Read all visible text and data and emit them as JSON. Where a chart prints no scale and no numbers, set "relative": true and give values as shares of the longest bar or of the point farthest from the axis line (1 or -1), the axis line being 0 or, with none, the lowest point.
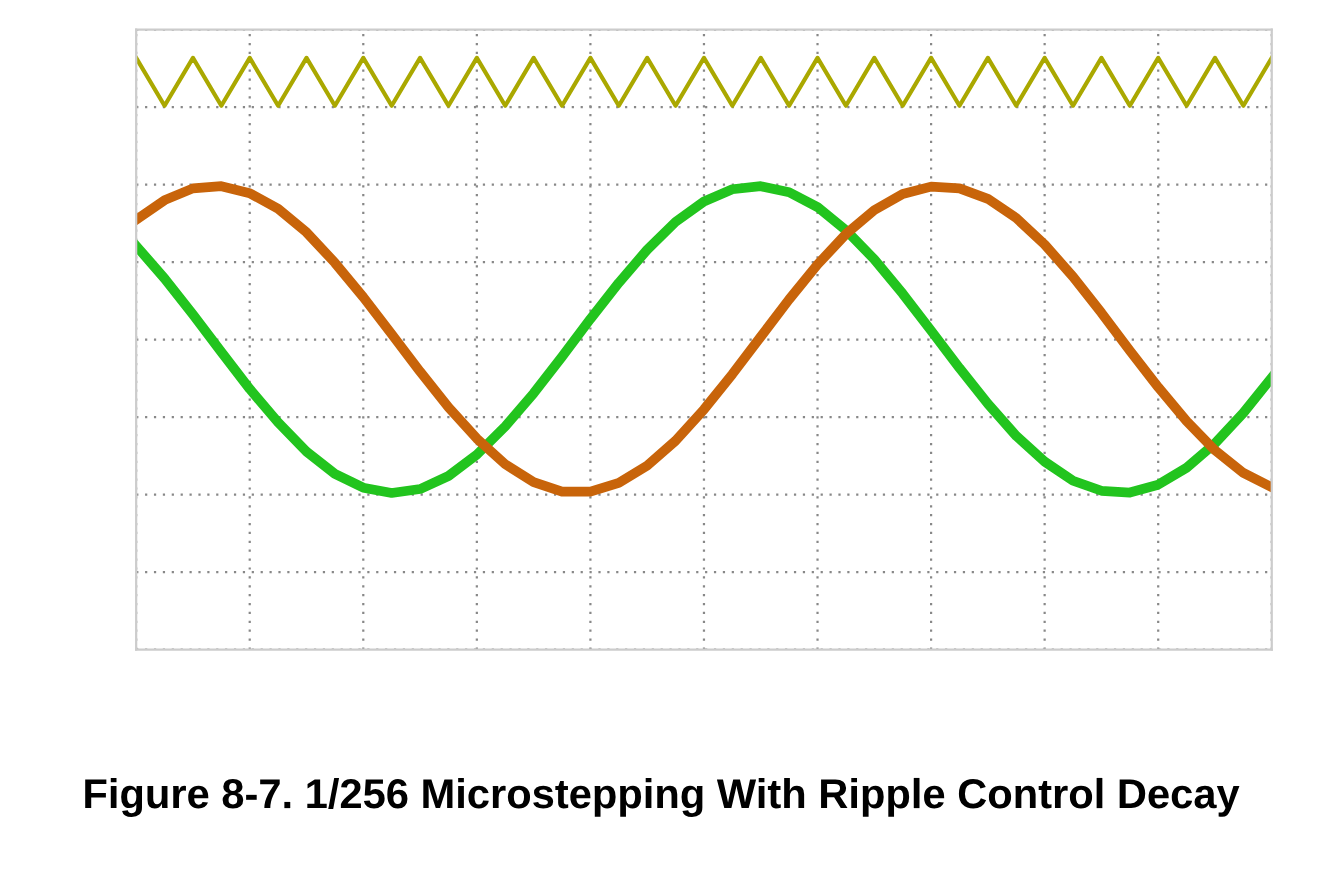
{
  "chart_data": {
    "type": "line",
    "relative": true,
    "grid": true,
    "legend": false,
    "title": "Figure 8-7. 1/256 Microstepping With Ripple Control Decay",
    "categories": [
      null,
      null,
      null,
      null,
      null,
      null,
      null,
      null,
      null,
      null,
      null,
      null,
      null,
      null,
      null,
      null,
      null,
      null,
      null,
      null,
      null,
      null,
      null,
      null,
      null,
      null,
      null,
      null,
      null,
      null,
      null,
      null,
      null,
      null,
      null,
      null,
      null,
      null,
      null,
      null,
      null
    ],
    "series": [
      {
        "color": "#aaa800",
        "values": [
          1,
          0.89,
          1,
          0.89,
          1,
          0.89,
          1,
          0.89,
          1,
          0.89,
          1,
          0.89,
          1,
          0.89,
          1,
          0.89,
          1,
          0.89,
          1,
          0.89,
          1,
          0.89,
          1,
          0.89,
          1,
          0.89,
          1,
          0.89,
          1,
          0.89,
          1,
          0.89,
          1,
          0.89,
          1,
          0.89,
          1,
          0.89,
          1,
          0.89,
          1
        ]
      },
      {
        "color": "#22c41e",
        "values": [
          0.568,
          0.493,
          0.41,
          0.324,
          0.239,
          0.162,
          0.095,
          0.044,
          0.012,
          0,
          0.009,
          0.039,
          0.088,
          0.153,
          0.229,
          0.313,
          0.4,
          0.483,
          0.559,
          0.623,
          0.67,
          0.698,
          0.705,
          0.691,
          0.657,
          0.604,
          0.537,
          0.458,
          0.373,
          0.287,
          0.205,
          0.131,
          0.072,
          0.028,
          0.005,
          0.001,
          0.019,
          0.058,
          0.114,
          0.184,
          0.265
        ]
      },
      {
        "color": "#c8640a",
        "values": [
          0.628,
          0.673,
          0.7,
          0.705,
          0.689,
          0.653,
          0.599,
          0.529,
          0.45,
          0.365,
          0.279,
          0.197,
          0.125,
          0.066,
          0.025,
          0.003,
          0.003,
          0.023,
          0.063,
          0.12,
          0.192,
          0.273,
          0.359,
          0.445,
          0.525,
          0.595,
          0.65,
          0.687,
          0.704,
          0.7,
          0.676,
          0.632,
          0.571,
          0.497,
          0.414,
          0.327,
          0.243,
          0.165,
          0.098,
          0.046,
          0.013
        ]
      }
    ]
  }
}
